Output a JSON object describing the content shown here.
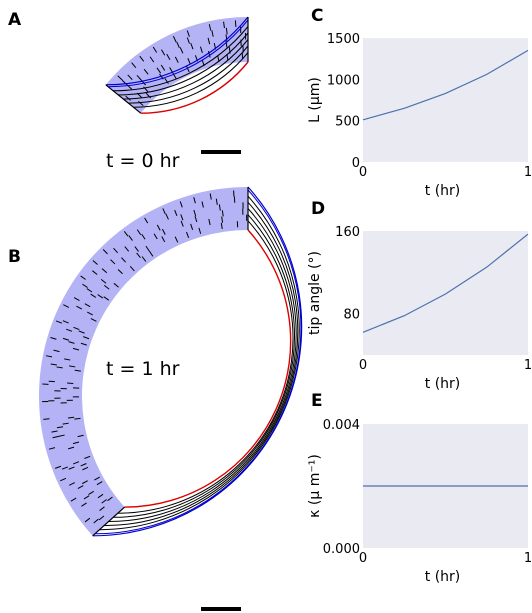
{
  "panels": {
    "A": {
      "label": "A",
      "time_label": "t = 0 hr"
    },
    "B": {
      "label": "B",
      "time_label": "t = 1 hr"
    }
  },
  "colors": {
    "tissue_fill": "#b3b3f5",
    "outer_edge": "#0000cc",
    "inner_edge": "#dd0000",
    "cell_walls": "#000000",
    "plot_bg": "#eaeaf2",
    "series_line": "#4c72b0",
    "scale_bar": "#000000"
  },
  "chart_data": [
    {
      "panel": "C",
      "type": "line",
      "xlabel": "t (hr)",
      "ylabel": "L (μm)",
      "xlim": [
        0,
        1
      ],
      "ylim": [
        0,
        1500
      ],
      "xticks": [
        "0",
        "1"
      ],
      "yticks": [
        "0",
        "500",
        "1000",
        "1500"
      ],
      "ytick_values": [
        0,
        500,
        1000,
        1500
      ],
      "grid": false,
      "series": [
        {
          "x": [
            0,
            0.25,
            0.5,
            0.75,
            1.0
          ],
          "y": [
            510,
            650,
            830,
            1060,
            1350
          ]
        }
      ]
    },
    {
      "panel": "D",
      "type": "line",
      "xlabel": "t (hr)",
      "ylabel": "tip angle (°)",
      "xlim": [
        0,
        1
      ],
      "ylim": [
        40,
        160
      ],
      "xticks": [
        "0",
        "1"
      ],
      "yticks": [
        "80",
        "160"
      ],
      "ytick_values": [
        80,
        160
      ],
      "grid": false,
      "series": [
        {
          "x": [
            0,
            0.25,
            0.5,
            0.75,
            1.0
          ],
          "y": [
            62,
            78,
            99,
            125,
            157
          ]
        }
      ]
    },
    {
      "panel": "E",
      "type": "line",
      "xlabel": "t (hr)",
      "ylabel": "κ (μ m⁻¹)",
      "xlim": [
        0,
        1
      ],
      "ylim": [
        0,
        0.004
      ],
      "xticks": [
        "0",
        "1"
      ],
      "yticks": [
        "0.000",
        "0.004"
      ],
      "ytick_values": [
        0,
        0.004
      ],
      "grid": false,
      "series": [
        {
          "x": [
            0,
            1
          ],
          "y": [
            0.002,
            0.002
          ]
        }
      ]
    }
  ]
}
